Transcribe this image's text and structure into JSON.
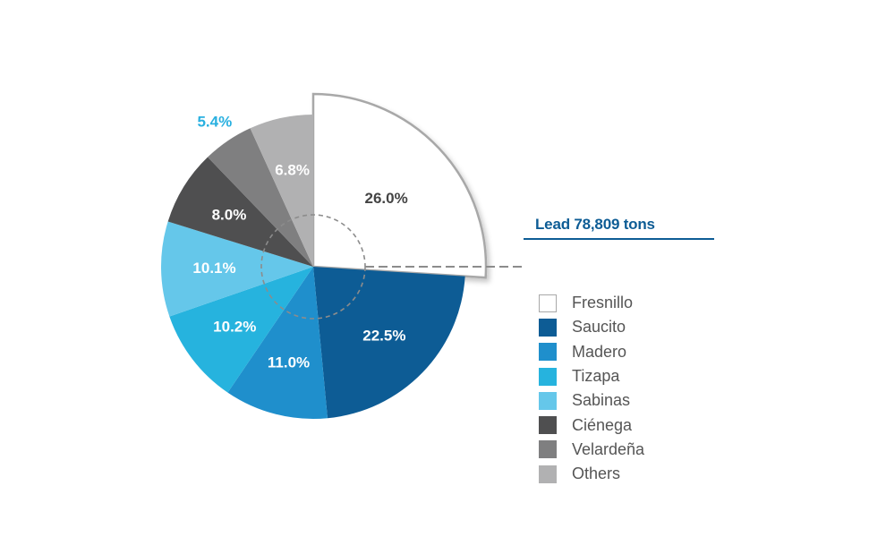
{
  "chart_data": {
    "type": "pie",
    "title": "Lead 78,809 tons",
    "legend_position": "right",
    "slices": [
      {
        "label": "Fresnillo",
        "value": 26.0,
        "value_label": "26.0%",
        "color": "#ffffff",
        "exploded": true
      },
      {
        "label": "Saucito",
        "value": 22.5,
        "value_label": "22.5%",
        "color": "#0d5c95"
      },
      {
        "label": "Madero",
        "value": 11.0,
        "value_label": "11.0%",
        "color": "#1f8fcc"
      },
      {
        "label": "Tizapa",
        "value": 10.2,
        "value_label": "10.2%",
        "color": "#26b3de"
      },
      {
        "label": "Sabinas",
        "value": 10.1,
        "value_label": "10.1%",
        "color": "#65c7ea"
      },
      {
        "label": "Ciénega",
        "value": 8.0,
        "value_label": "8.0%",
        "color": "#4f4f50"
      },
      {
        "label": "Velardeña",
        "value": 5.4,
        "value_label": "5.4%",
        "color": "#7f7f80"
      },
      {
        "label": "Others",
        "value": 6.8,
        "value_label": "6.8%",
        "color": "#b1b1b2"
      }
    ]
  },
  "colors": {
    "title": "#0d5c95",
    "outline": "#a8a8a8",
    "dashed": "#8c8c8c",
    "label_dark": "#444444",
    "label_light": "#ffffff",
    "label_outside": "#29b0e0"
  }
}
